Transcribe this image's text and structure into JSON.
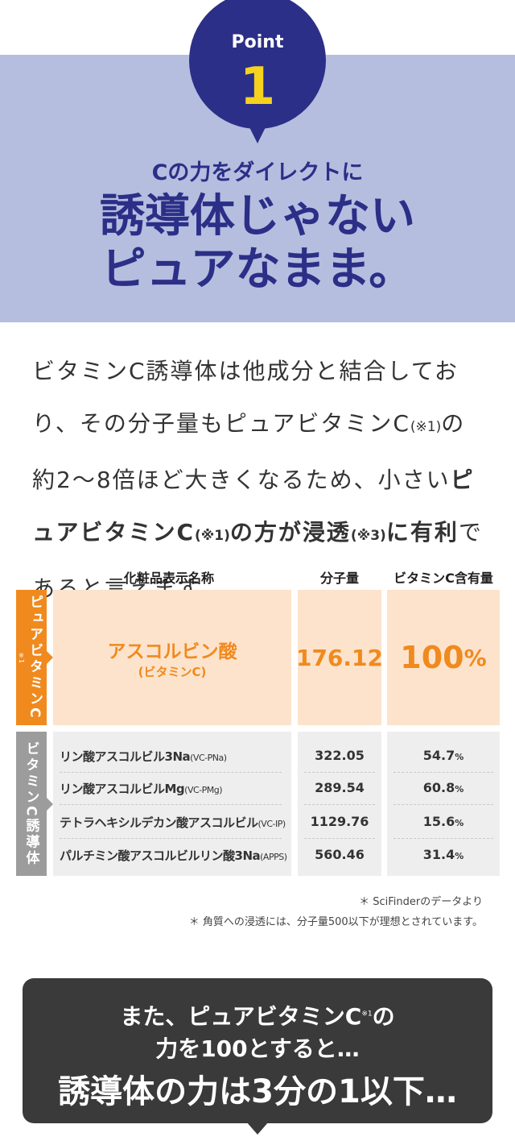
{
  "point": {
    "label": "Point",
    "number": "1"
  },
  "heading": {
    "sub": "Cの力をダイレクトに",
    "lines": [
      "誘導体じゃない",
      "ピュアなまま。"
    ]
  },
  "body": [
    "ビタミンC誘導体は他成分と結合しており、その分子量もピュアビタミンC",
    "(※1)",
    "の約2〜8倍ほど大きくなるため、小さい",
    "ピュアビタミンC",
    "(※1)",
    "の方が浸透",
    "(※3)",
    "に有利",
    "であると言えます。"
  ],
  "table": {
    "headers": [
      "化粧品表示名称",
      "分子量",
      "ビタミンC含有量"
    ],
    "pure": {
      "label": "ピュアビタミンC",
      "note": "※1",
      "name": "アスコルビン酸",
      "sub": "(ビタミンC)",
      "mw": "176.12",
      "content": "100",
      "unit": "%"
    },
    "derivative": {
      "label": "ビタミンC誘導体",
      "rows": [
        {
          "name": "リン酸アスコルビル3Na",
          "code": "(VC-PNa)",
          "mw": "322.05",
          "content": "54.7",
          "unit": "%"
        },
        {
          "name": "リン酸アスコルビルMg",
          "code": "(VC-PMg)",
          "mw": "289.54",
          "content": "60.8",
          "unit": "%"
        },
        {
          "name": "テトラヘキシルデカン酸アスコルビル",
          "code": "(VC-IP)",
          "mw": "1129.76",
          "content": "15.6",
          "unit": "%"
        },
        {
          "name": "パルチミン酸アスコルビルリン酸3Na",
          "code": "(APPS)",
          "mw": "560.46",
          "content": "31.4",
          "unit": "%"
        }
      ]
    }
  },
  "notes": [
    "＊ SciFinderのデータより",
    "＊ 角質への浸透には、分子量500以下が理想とされています。"
  ],
  "callout": {
    "line1": "また、ピュアビタミンC",
    "sup": "※1",
    "line1_end": "の",
    "line2": "力を100とすると…",
    "line3": "誘導体の力は3分の1以下…"
  }
}
